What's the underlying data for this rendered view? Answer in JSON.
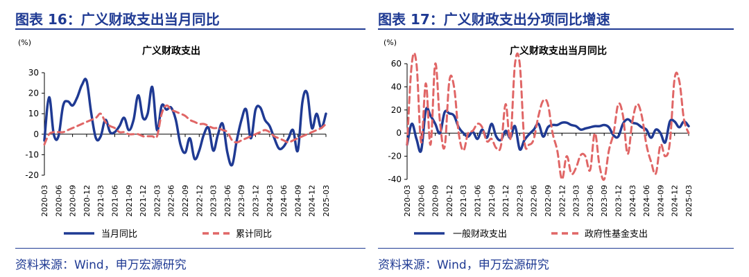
{
  "panels": [
    {
      "heading": "图表 16：广义财政支出当月同比",
      "source": "资料来源：Wind，申万宏源研究",
      "chart_data": {
        "type": "line",
        "title": "广义财政支出",
        "unit_label": "(%)",
        "ylim": [
          -20,
          30
        ],
        "yticks": [
          -20,
          -10,
          0,
          10,
          20,
          30
        ],
        "x_start": "2020-03",
        "x_end": "2025-03",
        "xtick_labels": [
          "2020-03",
          "2020-06",
          "2020-09",
          "2020-12",
          "2021-03",
          "2021-06",
          "2021-09",
          "2021-12",
          "2022-03",
          "2022-06",
          "2022-09",
          "2022-12",
          "2023-03",
          "2023-06",
          "2023-09",
          "2023-12",
          "2024-03",
          "2024-06",
          "2024-09",
          "2024-12",
          "2025-03"
        ],
        "legend_position": "bottom",
        "series": [
          {
            "name": "当月同比",
            "color": "#1f3a93",
            "dash": "solid",
            "values": [
              -3,
              18,
              0,
              -1,
              14,
              16,
              14,
              18,
              24,
              26,
              10,
              -2,
              -1,
              7,
              1,
              1,
              4,
              8,
              2,
              7,
              19,
              8,
              10,
              23,
              2,
              14,
              12,
              13,
              7,
              -5,
              -9,
              -2,
              -12,
              -8,
              0,
              3,
              -8,
              0,
              5,
              -9,
              -15,
              -3,
              7,
              12,
              -2,
              12,
              13,
              7,
              4,
              -2,
              -7,
              -6,
              -2,
              2,
              -8,
              16,
              20,
              3,
              10,
              3,
              10
            ]
          },
          {
            "name": "累计同比",
            "color": "#e06666",
            "dash": "dashed",
            "values": [
              -5,
              0,
              1,
              1,
              1,
              2,
              3,
              4,
              5,
              6,
              7,
              8,
              10,
              6,
              4,
              3,
              1,
              1,
              0,
              0,
              0,
              -1,
              -1,
              -1,
              -1,
              10,
              14,
              12,
              11,
              10,
              9,
              7,
              6,
              5,
              5,
              4,
              3,
              3,
              2,
              1,
              -3,
              -4,
              -3,
              -2,
              -1,
              0,
              1,
              2,
              1,
              -1,
              -2,
              -3,
              -4,
              -3,
              -2,
              -1,
              0,
              1,
              2,
              3,
              5
            ]
          }
        ]
      }
    },
    {
      "heading": "图表 17：广义财政支出分项同比增速",
      "source": "资料来源：Wind，申万宏源研究",
      "chart_data": {
        "type": "line",
        "title": "广义财政支出当月同比",
        "unit_label": "(%)",
        "ylim": [
          -40,
          60
        ],
        "yticks": [
          -40,
          -20,
          0,
          20,
          40,
          60
        ],
        "x_start": "2020-03",
        "x_end": "2025-03",
        "xtick_labels": [
          "2020-03",
          "2020-06",
          "2020-09",
          "2020-12",
          "2021-03",
          "2021-06",
          "2021-09",
          "2021-12",
          "2022-03",
          "2022-06",
          "2022-09",
          "2022-12",
          "2023-03",
          "2023-06",
          "2023-09",
          "2023-12",
          "2024-03",
          "2024-06",
          "2024-09",
          "2024-12",
          "2025-03"
        ],
        "legend_position": "bottom",
        "series": [
          {
            "name": "一般财政支出",
            "color": "#1f3a93",
            "dash": "solid",
            "values": [
              -10,
              8,
              -5,
              -15,
              20,
              15,
              8,
              0,
              18,
              17,
              15,
              5,
              0,
              -3,
              1,
              -5,
              3,
              -4,
              8,
              -3,
              -6,
              2,
              -4,
              6,
              -14,
              -6,
              -1,
              3,
              8,
              -3,
              5,
              7,
              7,
              9,
              9,
              7,
              6,
              3,
              4,
              5,
              6,
              6,
              7,
              5,
              -2,
              -3,
              8,
              12,
              9,
              8,
              5,
              3,
              -4,
              3,
              0,
              -8,
              10,
              10,
              5,
              10,
              6
            ]
          },
          {
            "name": "政府性基金支出",
            "color": "#e06666",
            "dash": "dashed",
            "values": [
              -10,
              60,
              60,
              -8,
              43,
              -10,
              60,
              10,
              -12,
              45,
              40,
              0,
              -15,
              0,
              2,
              8,
              5,
              -7,
              -5,
              -13,
              -11,
              25,
              -5,
              60,
              60,
              -7,
              -10,
              -5,
              15,
              28,
              25,
              0,
              -15,
              -40,
              -20,
              -35,
              -30,
              -19,
              -20,
              -32,
              0,
              -28,
              -42,
              -15,
              0,
              25,
              15,
              -18,
              10,
              25,
              15,
              -10,
              -25,
              -35,
              -10,
              -20,
              -8,
              47,
              45,
              12,
              0
            ]
          }
        ]
      }
    }
  ]
}
